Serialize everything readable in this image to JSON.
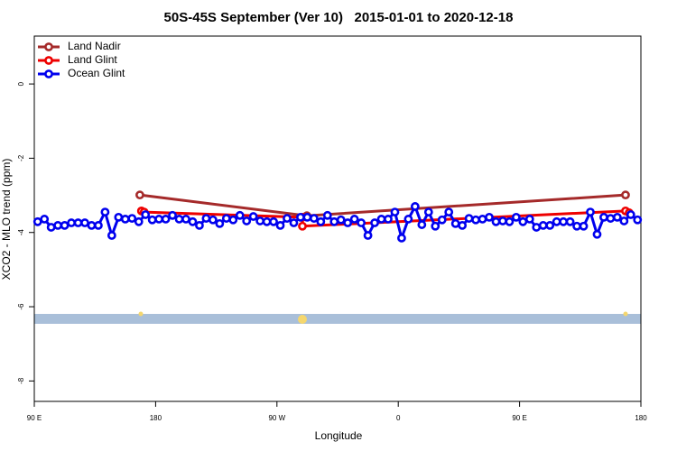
{
  "chart_data": {
    "type": "line",
    "title": "50S-45S September (Ver 10)   2015-01-01 to 2020-12-18",
    "x_label": "Longitude",
    "y_label": "XCO2 - MLO trend (ppm)",
    "xlim": [
      90,
      540
    ],
    "ylim": [
      -8.55,
      1.29
    ],
    "xticks": [
      {
        "value": 90,
        "label": "90 E"
      },
      {
        "value": 180,
        "label": "180"
      },
      {
        "value": 270,
        "label": "90 W"
      },
      {
        "value": 360,
        "label": "0"
      },
      {
        "value": 450,
        "label": "90 E"
      },
      {
        "value": 540,
        "label": "180"
      }
    ],
    "yticks": [
      0,
      -2,
      -4,
      -6,
      -8
    ],
    "legend": "top-left",
    "series": [
      {
        "name": "Land Nadir",
        "color": "#a52a2a",
        "x": [
          168.3,
          292.2,
          528.6
        ],
        "values": [
          -2.99,
          -3.55,
          -2.99
        ]
      },
      {
        "name": "Land Glint",
        "color": "#ee0000",
        "x": [
          169.5,
          171.5,
          288.9,
          288.9,
          528.6,
          531.3
        ],
        "values": [
          -3.42,
          -3.45,
          -3.59,
          -3.83,
          -3.42,
          -3.47
        ]
      },
      {
        "name": "Ocean Glint",
        "color": "#0000ee",
        "x": [
          92.5,
          97.5,
          102.5,
          107.5,
          112.5,
          117.5,
          122.5,
          127.5,
          132.5,
          137.5,
          142.5,
          147.5,
          152.5,
          157.5,
          162.5,
          167.5,
          172.5,
          177.5,
          182.5,
          187.5,
          192.5,
          197.5,
          202.5,
          207.5,
          212.5,
          217.5,
          222.5,
          227.5,
          232.5,
          237.5,
          242.5,
          247.5,
          252.5,
          257.5,
          262.5,
          267.5,
          272.5,
          277.5,
          282.5,
          287.5,
          292.5,
          297.5,
          302.5,
          307.5,
          312.5,
          317.5,
          322.5,
          327.5,
          332.5,
          337.5,
          342.5,
          347.5,
          352.5,
          357.5,
          362.5,
          367.5,
          372.5,
          377.5,
          382.5,
          387.5,
          392.5,
          397.5,
          402.5,
          407.5,
          412.5,
          417.5,
          422.5,
          427.5,
          432.5,
          437.5,
          442.5,
          447.5,
          452.5,
          457.5,
          462.5,
          467.5,
          472.5,
          477.5,
          482.5,
          487.5,
          492.5,
          497.5,
          502.5,
          507.5,
          512.5,
          517.5,
          522.5,
          527.5,
          532.5,
          537.5
        ],
        "values": [
          -3.71,
          -3.64,
          -3.86,
          -3.81,
          -3.81,
          -3.74,
          -3.74,
          -3.74,
          -3.81,
          -3.81,
          -3.45,
          -4.08,
          -3.59,
          -3.64,
          -3.62,
          -3.71,
          -3.52,
          -3.66,
          -3.64,
          -3.64,
          -3.54,
          -3.64,
          -3.64,
          -3.71,
          -3.81,
          -3.62,
          -3.66,
          -3.76,
          -3.62,
          -3.66,
          -3.54,
          -3.69,
          -3.57,
          -3.69,
          -3.71,
          -3.71,
          -3.81,
          -3.62,
          -3.74,
          -3.59,
          -3.59,
          -3.62,
          -3.71,
          -3.54,
          -3.71,
          -3.66,
          -3.74,
          -3.64,
          -3.74,
          -4.08,
          -3.74,
          -3.64,
          -3.64,
          -3.45,
          -4.15,
          -3.64,
          -3.3,
          -3.79,
          -3.45,
          -3.83,
          -3.66,
          -3.45,
          -3.76,
          -3.81,
          -3.62,
          -3.66,
          -3.64,
          -3.59,
          -3.71,
          -3.69,
          -3.71,
          -3.59,
          -3.71,
          -3.64,
          -3.86,
          -3.81,
          -3.81,
          -3.71,
          -3.71,
          -3.71,
          -3.83,
          -3.83,
          -3.45,
          -4.05,
          -3.59,
          -3.62,
          -3.59,
          -3.69,
          -3.52,
          -3.66
        ]
      }
    ]
  }
}
